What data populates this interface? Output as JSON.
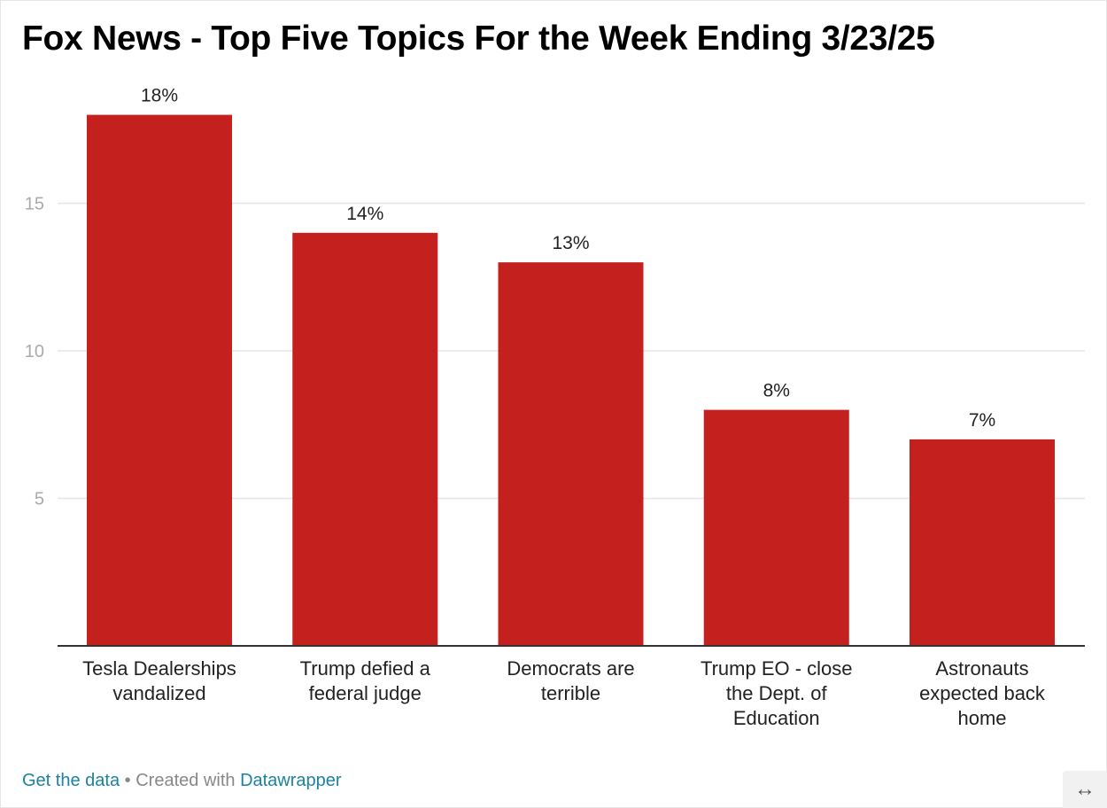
{
  "title": "Fox News - Top Five Topics For the Week Ending 3/23/25",
  "footer": {
    "get_data_label": "Get the data",
    "separator": "•",
    "created_with_label": "Created with",
    "datawrapper_label": "Datawrapper",
    "expand_icon": "↔"
  },
  "colors": {
    "bar": "#c4201e",
    "gridline": "#e5e5e5",
    "baseline": "#333333",
    "tick_label": "#aaaaaa",
    "link": "#1d81a2"
  },
  "chart_data": {
    "type": "bar",
    "categories": [
      [
        "Tesla Dealerships",
        "vandalized"
      ],
      [
        "Trump defied a",
        "federal judge"
      ],
      [
        "Democrats are",
        "terrible"
      ],
      [
        "Trump EO - close",
        "the Dept. of",
        "Education"
      ],
      [
        "Astronauts",
        "expected back",
        "home"
      ]
    ],
    "values": [
      18,
      14,
      13,
      8,
      7
    ],
    "data_labels": [
      "18%",
      "14%",
      "13%",
      "8%",
      "7%"
    ],
    "yticks": [
      5,
      10,
      15
    ],
    "ylim": [
      0,
      18
    ],
    "grid": true,
    "legend": "none"
  }
}
